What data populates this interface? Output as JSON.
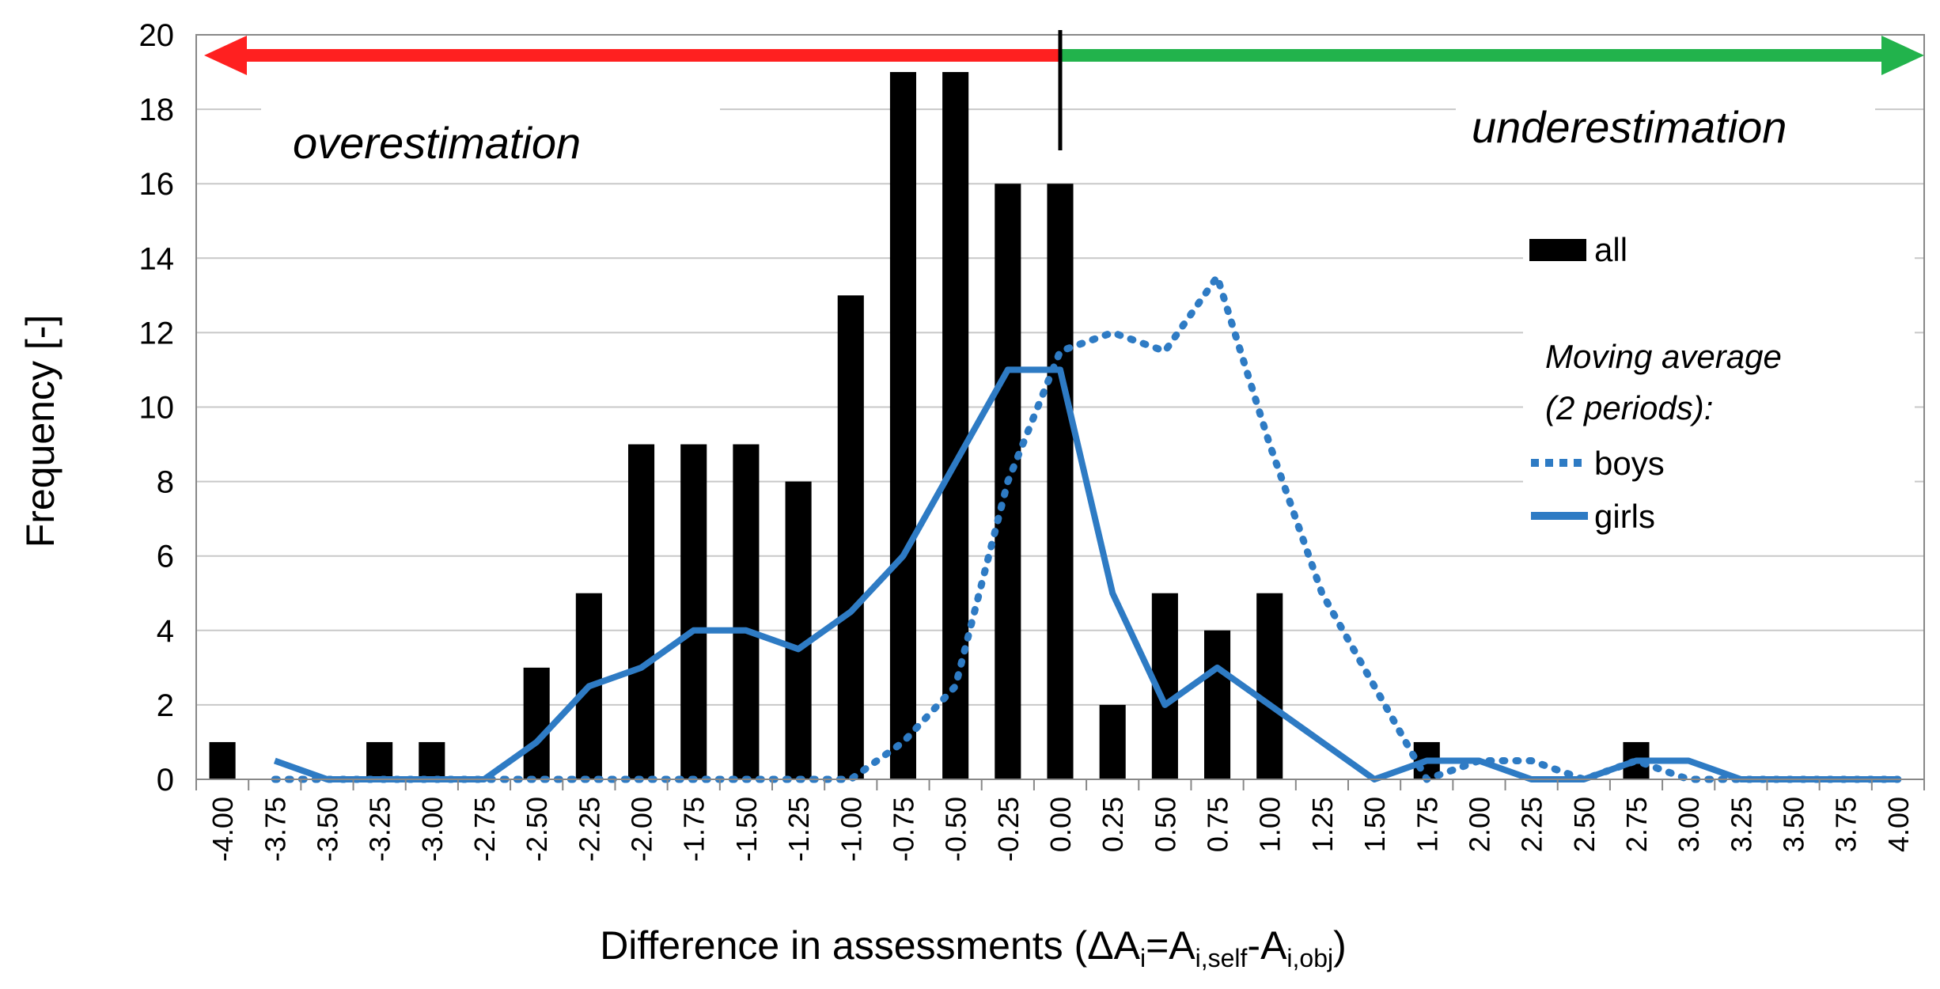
{
  "chart_data": {
    "type": "bar",
    "title": "",
    "xlabel": "Difference in assessments (ΔAi=Ai,self-Ai,obj)",
    "xlabel_parts": {
      "prefix": "Difference in assessments (ΔA",
      "sub1": "i",
      "mid1": "=A",
      "sub2": "i,self",
      "mid2": "-A",
      "sub3": "i,obj",
      "suffix": ")"
    },
    "ylabel": "Frequency [-]",
    "ylim": [
      0,
      20
    ],
    "yticks": [
      "0",
      "2",
      "4",
      "6",
      "8",
      "10",
      "12",
      "14",
      "16",
      "18",
      "20"
    ],
    "categories": [
      "-4.00",
      "-3.75",
      "-3.50",
      "-3.25",
      "-3.00",
      "-2.75",
      "-2.50",
      "-2.25",
      "-2.00",
      "-1.75",
      "-1.50",
      "-1.25",
      "-1.00",
      "-0.75",
      "-0.50",
      "-0.25",
      "0.00",
      "0.25",
      "0.50",
      "0.75",
      "1.00",
      "1.25",
      "1.50",
      "1.75",
      "2.00",
      "2.25",
      "2.50",
      "2.75",
      "3.00",
      "3.25",
      "3.50",
      "3.75",
      "4.00"
    ],
    "series": [
      {
        "name": "all",
        "kind": "bar",
        "color": "#000000",
        "values": [
          1,
          0,
          0,
          1,
          1,
          0,
          3,
          5,
          9,
          9,
          9,
          8,
          13,
          19,
          19,
          16,
          16,
          2,
          5,
          4,
          5,
          0,
          0,
          1,
          0,
          0,
          0,
          1,
          0,
          0,
          0,
          0,
          0
        ]
      },
      {
        "name": "boys",
        "kind": "dotted-line",
        "color": "#2E7BC4",
        "values": [
          null,
          0,
          0,
          0,
          0,
          0,
          0,
          0,
          0,
          0,
          0,
          0,
          0,
          1,
          2.5,
          8,
          11.5,
          12,
          11.5,
          13.5,
          9,
          5,
          2.5,
          0,
          0.5,
          0.5,
          0,
          0.5,
          0,
          0,
          0,
          0,
          0
        ]
      },
      {
        "name": "girls",
        "kind": "line",
        "color": "#2E7BC4",
        "values": [
          null,
          0.5,
          0,
          0,
          0,
          0,
          1,
          2.5,
          3,
          4,
          4,
          3.5,
          4.5,
          6,
          8.5,
          11,
          11,
          5,
          2,
          3,
          2,
          1,
          0,
          0.5,
          0.5,
          0,
          0,
          0.5,
          0.5,
          0,
          0,
          0,
          0
        ]
      }
    ],
    "annotations": {
      "left": "overestimation",
      "right": "underestimation",
      "arrow_left_color": "#FF2020",
      "arrow_right_color": "#22B34C",
      "divider_at": "0.00"
    },
    "legend": {
      "bar_label": "all",
      "heading_line1": "Moving average",
      "heading_line2": "(2 periods):",
      "boys_label": "boys",
      "girls_label": "girls",
      "placement": "right"
    }
  }
}
